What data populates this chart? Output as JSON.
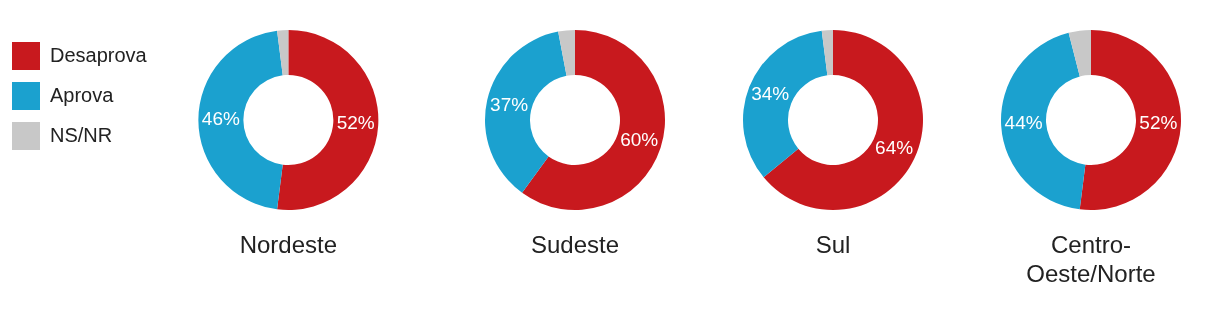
{
  "chart_data": [
    {
      "type": "donut",
      "title": "Nordeste",
      "legend": "left",
      "categories": [
        "Desaprova",
        "Aprova",
        "NS/NR"
      ],
      "values": [
        52,
        46,
        2
      ],
      "colors": [
        "#c8191e",
        "#1ba1cf",
        "#c8c8c8"
      ],
      "value_labels": [
        "52%",
        "46%",
        null
      ]
    },
    {
      "type": "donut",
      "title": "Sudeste",
      "categories": [
        null,
        null,
        null
      ],
      "values": [
        60,
        37,
        3
      ],
      "colors": [
        "#c8191e",
        "#1ba1cf",
        "#c8c8c8"
      ],
      "value_labels": [
        "60%",
        "37%",
        null
      ]
    },
    {
      "type": "donut",
      "title": "Sul",
      "categories": [
        null,
        null,
        null
      ],
      "values": [
        64,
        34,
        2
      ],
      "colors": [
        "#c8191e",
        "#1ba1cf",
        "#c8c8c8"
      ],
      "value_labels": [
        "64%",
        "34%",
        null
      ]
    },
    {
      "type": "donut",
      "title": "Centro-\nOeste/Norte",
      "categories": [
        null,
        null,
        null
      ],
      "values": [
        52,
        44,
        4
      ],
      "colors": [
        "#c8191e",
        "#1ba1cf",
        "#c8c8c8"
      ],
      "value_labels": [
        "52%",
        "44%",
        null
      ]
    }
  ]
}
